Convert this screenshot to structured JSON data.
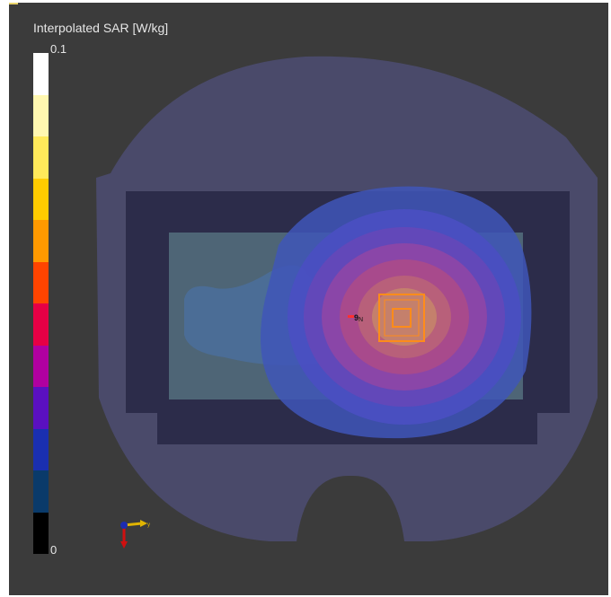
{
  "legend": {
    "title": "Interpolated SAR [W/kg]",
    "max_label": "0.1",
    "min_label": "0",
    "colors": [
      "#ffffff",
      "#fff7b0",
      "#ffe95a",
      "#ffcc00",
      "#ff9900",
      "#ff4400",
      "#e60045",
      "#b000a0",
      "#5a10c0",
      "#1a2fb0",
      "#0a3a6a",
      "#000000"
    ]
  },
  "scene": {
    "colors": {
      "viewport_bg": "#3b3b3b",
      "phantom_outer": "#4a4a6a",
      "phantom_inner": "#2c2c4a",
      "tissue": "#4b6e86",
      "sar_contours": [
        "#3a4fb0",
        "#4a52c0",
        "#6a4fb8",
        "#8e4aa8",
        "#b0507a",
        "#c47a6a"
      ],
      "antenna": "#ff8c1a"
    },
    "probe_marker": "9",
    "probe_marker_sub": "N"
  },
  "axes_triad": {
    "x_color": "#e0b400",
    "y_color": "#1c2cb0",
    "z_color": "#d01010",
    "y_label": "y"
  }
}
